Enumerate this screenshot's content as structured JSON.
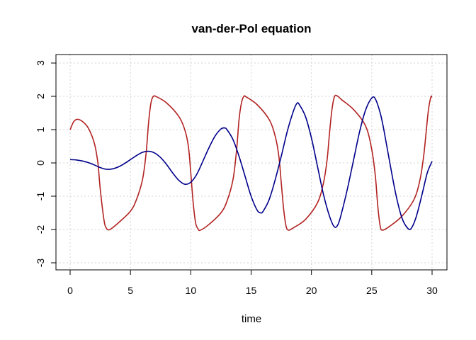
{
  "chart_data": {
    "type": "line",
    "title": "van-der-Pol equation",
    "xlabel": "time",
    "ylabel": "",
    "xlim": [
      0,
      30
    ],
    "ylim": [
      -3,
      3
    ],
    "xticks": [
      0,
      5,
      10,
      15,
      20,
      25,
      30
    ],
    "yticks": [
      -3,
      -2,
      -1,
      0,
      1,
      2,
      3
    ],
    "grid": true,
    "series": [
      {
        "color": "#b22222",
        "points": [
          [
            0,
            1.0
          ],
          [
            0.3,
            1.24
          ],
          [
            0.6,
            1.31
          ],
          [
            1.0,
            1.25
          ],
          [
            1.5,
            1.05
          ],
          [
            2.0,
            0.6
          ],
          [
            2.3,
            0.0
          ],
          [
            2.5,
            -0.8
          ],
          [
            2.8,
            -1.7
          ],
          [
            3.0,
            -1.96
          ],
          [
            3.3,
            -2.0
          ],
          [
            4.0,
            -1.8
          ],
          [
            5.0,
            -1.45
          ],
          [
            5.5,
            -1.1
          ],
          [
            6.0,
            -0.5
          ],
          [
            6.3,
            0.3
          ],
          [
            6.5,
            1.2
          ],
          [
            6.7,
            1.8
          ],
          [
            6.9,
            2.0
          ],
          [
            7.2,
            1.98
          ],
          [
            8.0,
            1.8
          ],
          [
            9.0,
            1.4
          ],
          [
            9.5,
            1.0
          ],
          [
            9.8,
            0.5
          ],
          [
            10.0,
            -0.3
          ],
          [
            10.2,
            -1.2
          ],
          [
            10.4,
            -1.8
          ],
          [
            10.6,
            -1.98
          ],
          [
            10.8,
            -2.02
          ],
          [
            11.5,
            -1.85
          ],
          [
            12.5,
            -1.5
          ],
          [
            13.0,
            -1.15
          ],
          [
            13.5,
            -0.5
          ],
          [
            13.8,
            0.4
          ],
          [
            14.0,
            1.3
          ],
          [
            14.2,
            1.8
          ],
          [
            14.4,
            2.0
          ],
          [
            14.6,
            1.98
          ],
          [
            15.5,
            1.75
          ],
          [
            16.5,
            1.3
          ],
          [
            17.0,
            0.8
          ],
          [
            17.3,
            0.2
          ],
          [
            17.5,
            -0.6
          ],
          [
            17.7,
            -1.4
          ],
          [
            17.9,
            -1.9
          ],
          [
            18.1,
            -2.02
          ],
          [
            18.5,
            -1.95
          ],
          [
            19.5,
            -1.7
          ],
          [
            20.5,
            -1.2
          ],
          [
            21.0,
            -0.6
          ],
          [
            21.3,
            0.1
          ],
          [
            21.5,
            0.9
          ],
          [
            21.7,
            1.6
          ],
          [
            21.9,
            1.98
          ],
          [
            22.1,
            2.02
          ],
          [
            22.5,
            1.9
          ],
          [
            23.5,
            1.6
          ],
          [
            24.5,
            1.1
          ],
          [
            25.0,
            0.4
          ],
          [
            25.3,
            -0.4
          ],
          [
            25.5,
            -1.3
          ],
          [
            25.7,
            -1.9
          ],
          [
            25.9,
            -2.02
          ],
          [
            26.5,
            -1.9
          ],
          [
            27.5,
            -1.6
          ],
          [
            28.5,
            -1.1
          ],
          [
            29.0,
            -0.5
          ],
          [
            29.3,
            0.2
          ],
          [
            29.5,
            0.9
          ],
          [
            29.7,
            1.6
          ],
          [
            29.9,
            1.98
          ],
          [
            30.0,
            1.98
          ]
        ]
      },
      {
        "color": "#00008b",
        "points": [
          [
            0,
            0.1
          ],
          [
            0.5,
            0.09
          ],
          [
            1.0,
            0.06
          ],
          [
            1.5,
            0.01
          ],
          [
            2.0,
            -0.06
          ],
          [
            2.5,
            -0.14
          ],
          [
            3.0,
            -0.19
          ],
          [
            3.5,
            -0.18
          ],
          [
            4.0,
            -0.12
          ],
          [
            4.5,
            -0.02
          ],
          [
            5.0,
            0.1
          ],
          [
            5.5,
            0.22
          ],
          [
            6.0,
            0.32
          ],
          [
            6.5,
            0.35
          ],
          [
            7.0,
            0.3
          ],
          [
            7.5,
            0.16
          ],
          [
            8.0,
            -0.05
          ],
          [
            8.5,
            -0.3
          ],
          [
            9.0,
            -0.52
          ],
          [
            9.5,
            -0.64
          ],
          [
            10.0,
            -0.58
          ],
          [
            10.5,
            -0.34
          ],
          [
            11.0,
            0.05
          ],
          [
            11.5,
            0.45
          ],
          [
            12.0,
            0.8
          ],
          [
            12.5,
            1.02
          ],
          [
            12.8,
            1.05
          ],
          [
            13.0,
            1.0
          ],
          [
            13.5,
            0.7
          ],
          [
            14.0,
            0.2
          ],
          [
            14.5,
            -0.4
          ],
          [
            15.0,
            -1.0
          ],
          [
            15.5,
            -1.42
          ],
          [
            15.8,
            -1.5
          ],
          [
            16.0,
            -1.45
          ],
          [
            16.5,
            -1.1
          ],
          [
            17.0,
            -0.5
          ],
          [
            17.5,
            0.2
          ],
          [
            18.0,
            0.95
          ],
          [
            18.5,
            1.55
          ],
          [
            18.8,
            1.79
          ],
          [
            19.0,
            1.75
          ],
          [
            19.5,
            1.4
          ],
          [
            20.0,
            0.75
          ],
          [
            20.5,
            -0.1
          ],
          [
            21.0,
            -0.95
          ],
          [
            21.5,
            -1.6
          ],
          [
            21.9,
            -1.92
          ],
          [
            22.2,
            -1.85
          ],
          [
            22.5,
            -1.5
          ],
          [
            23.0,
            -0.75
          ],
          [
            23.5,
            0.1
          ],
          [
            24.0,
            0.95
          ],
          [
            24.5,
            1.6
          ],
          [
            25.0,
            1.95
          ],
          [
            25.3,
            1.92
          ],
          [
            25.7,
            1.5
          ],
          [
            26.0,
            1.0
          ],
          [
            26.5,
            0.0
          ],
          [
            27.0,
            -0.95
          ],
          [
            27.5,
            -1.65
          ],
          [
            28.0,
            -1.97
          ],
          [
            28.3,
            -1.95
          ],
          [
            28.7,
            -1.6
          ],
          [
            29.2,
            -0.9
          ],
          [
            29.6,
            -0.3
          ],
          [
            30.0,
            0.05
          ]
        ]
      }
    ]
  }
}
